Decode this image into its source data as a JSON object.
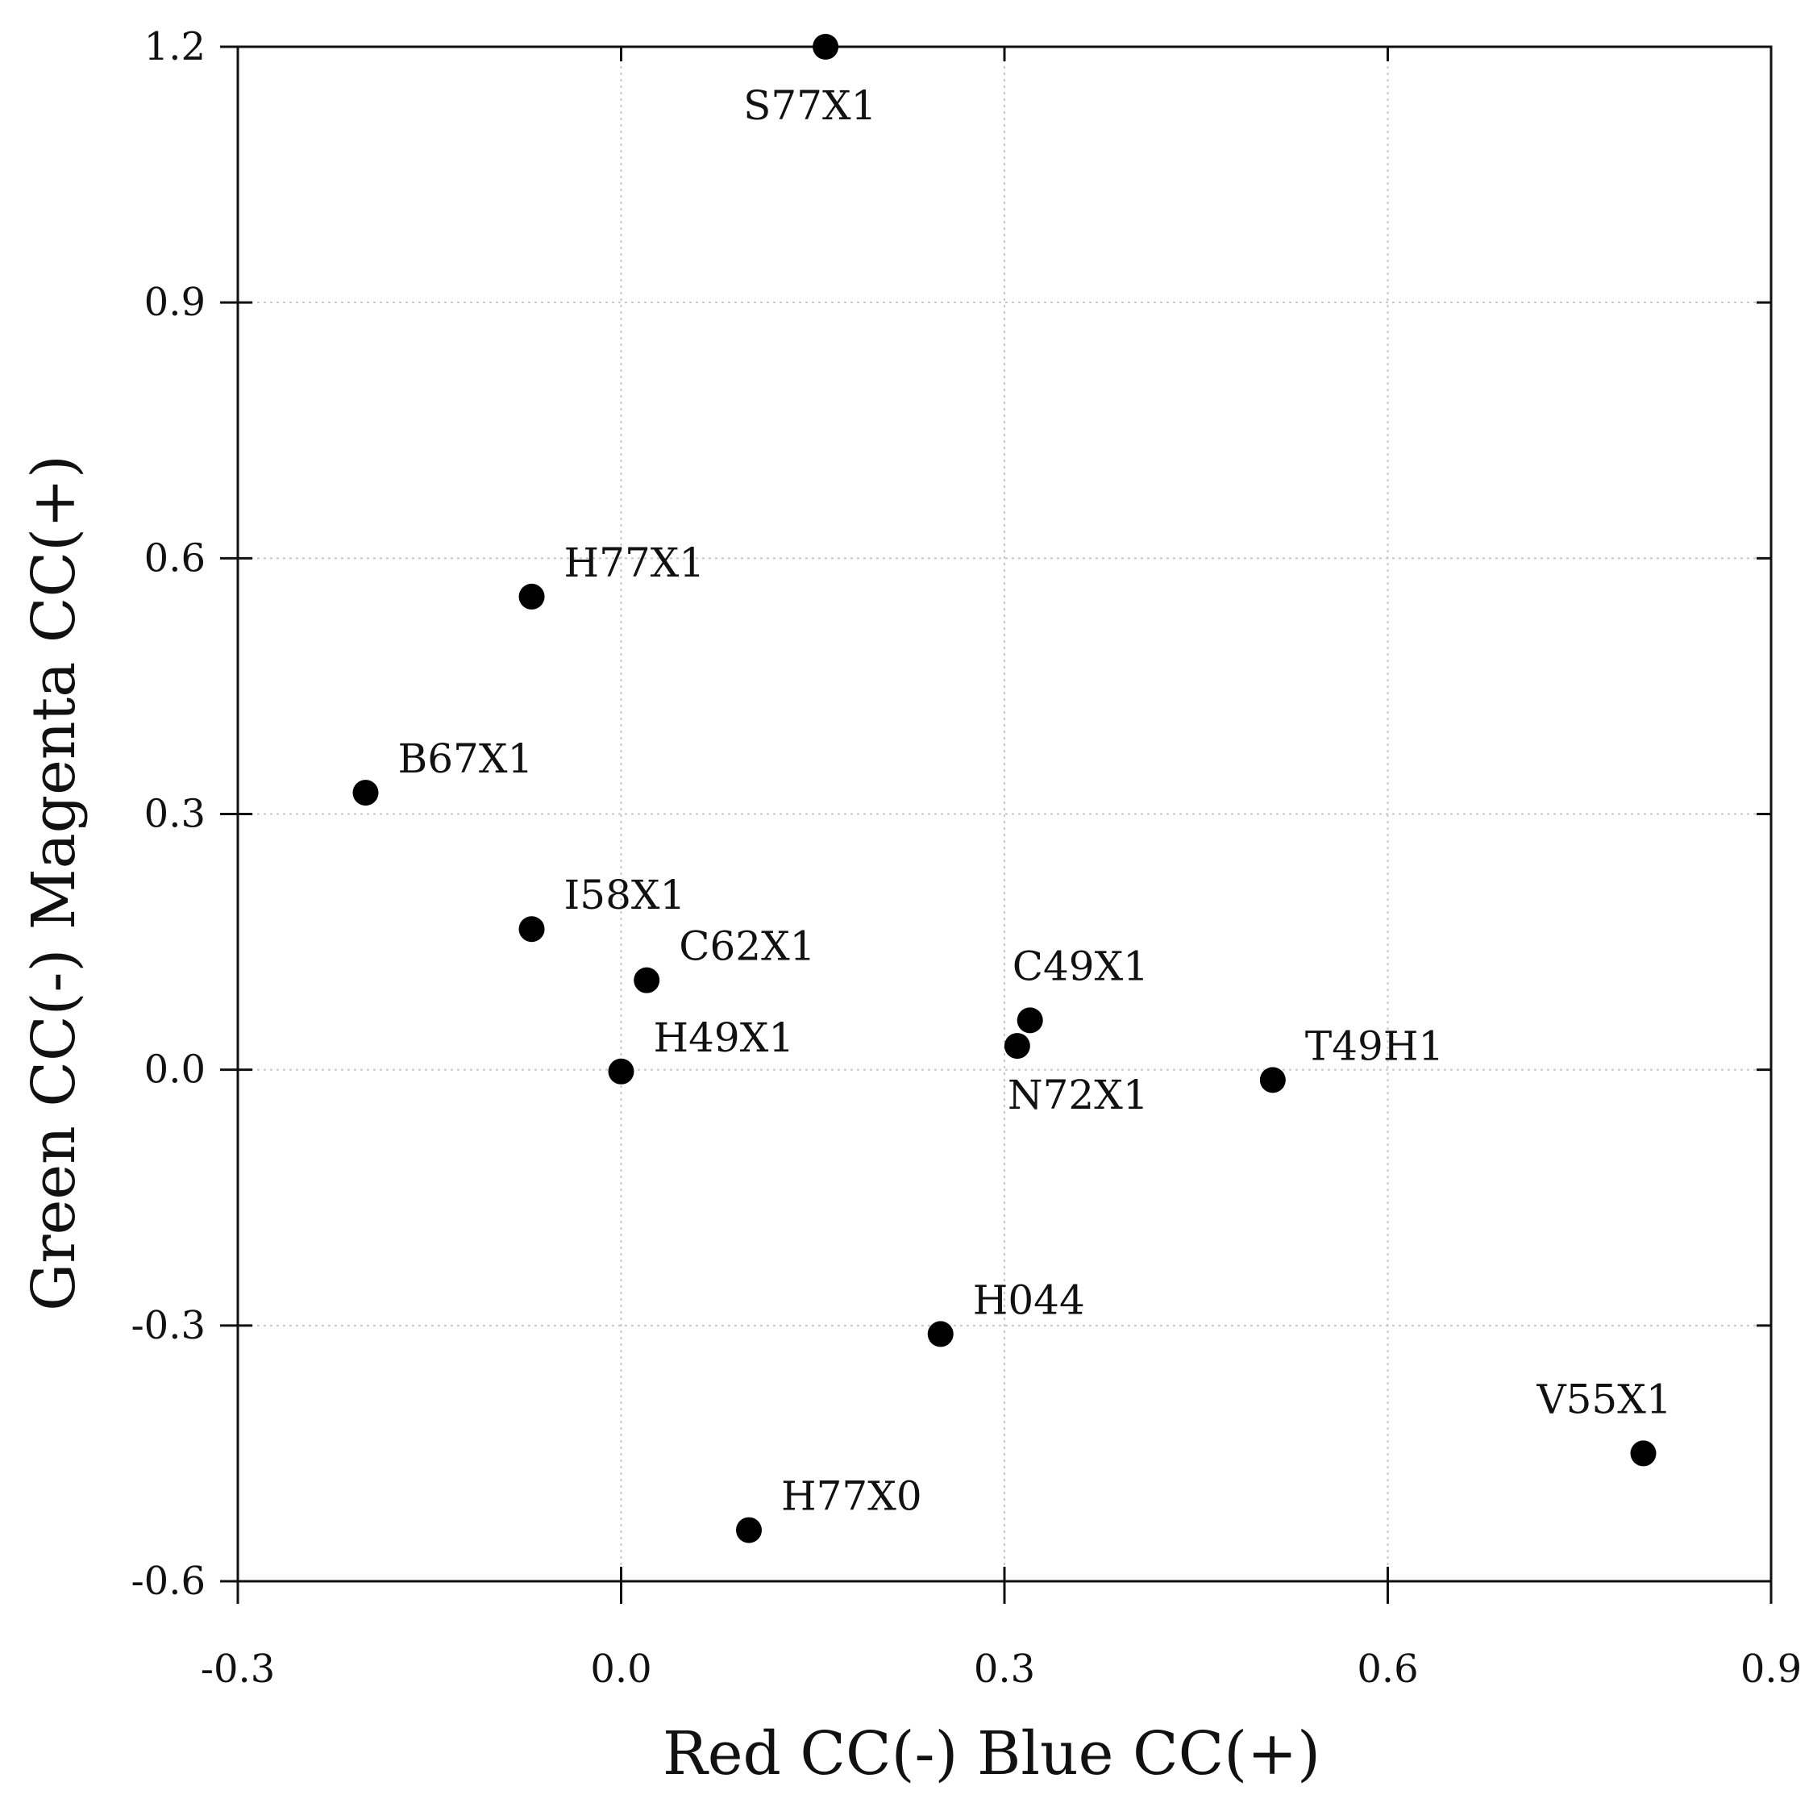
{
  "chart_data": {
    "type": "scatter",
    "title": "",
    "xlabel": "Red CC(-)  Blue CC(+)",
    "ylabel": "Green CC(-) Magenta CC(+)",
    "xlim": [
      -0.3,
      0.9
    ],
    "ylim": [
      -0.6,
      1.2
    ],
    "xticks": [
      "-0.3",
      "0.0",
      "0.3",
      "0.6",
      "0.9"
    ],
    "yticks": [
      "1.2",
      "0.9",
      "0.6",
      "0.3",
      "0.0",
      "-0.3",
      "-0.6"
    ],
    "grid": true,
    "marker_color": "#000000",
    "points": [
      {
        "label": "S77X1",
        "x": 0.16,
        "y": 1.2
      },
      {
        "label": "H77X1",
        "x": -0.07,
        "y": 0.555
      },
      {
        "label": "B67X1",
        "x": -0.2,
        "y": 0.325
      },
      {
        "label": "I58X1",
        "x": -0.07,
        "y": 0.165
      },
      {
        "label": "C62X1",
        "x": 0.02,
        "y": 0.105
      },
      {
        "label": "C49X1",
        "x": 0.32,
        "y": 0.058
      },
      {
        "label": "N72X1",
        "x": 0.31,
        "y": 0.028
      },
      {
        "label": "H49X1",
        "x": 0.0,
        "y": -0.002
      },
      {
        "label": "T49H1",
        "x": 0.51,
        "y": -0.012
      },
      {
        "label": "H044",
        "x": 0.25,
        "y": -0.31
      },
      {
        "label": "V55X1",
        "x": 0.8,
        "y": -0.45
      },
      {
        "label": "H77X0",
        "x": 0.1,
        "y": -0.54
      }
    ]
  }
}
